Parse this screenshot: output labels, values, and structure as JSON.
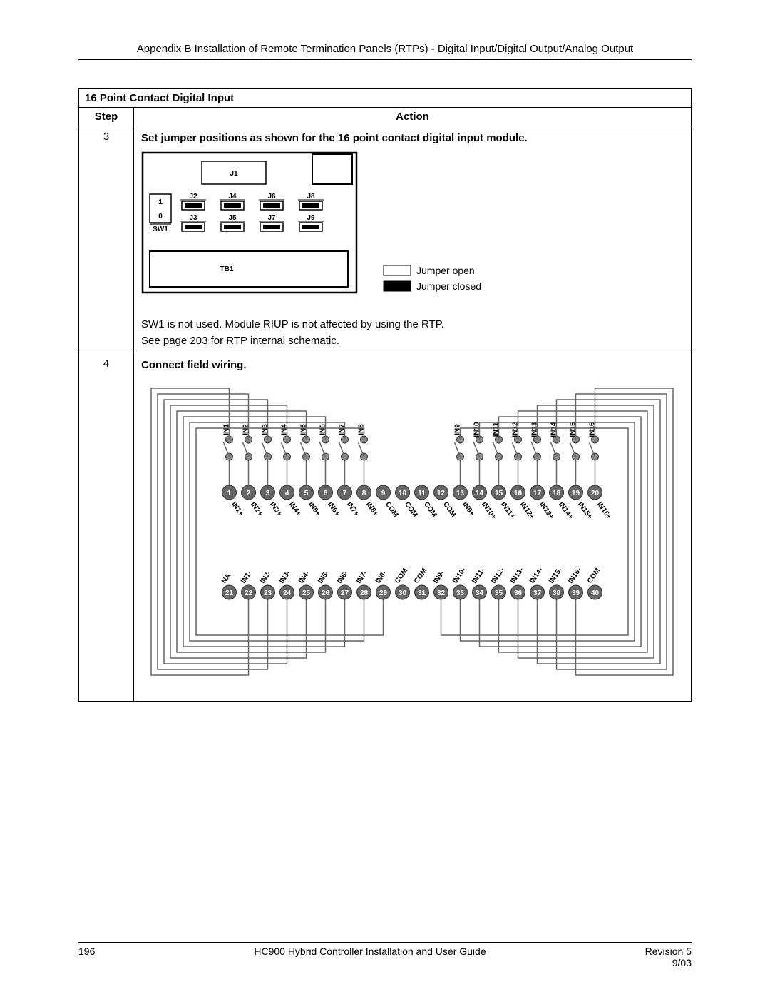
{
  "header": "Appendix B Installation of Remote Termination Panels (RTPs) - Digital Input/Digital Output/Analog Output",
  "table": {
    "title": "16 Point Contact Digital Input",
    "col1": "Step",
    "col2": "Action",
    "step3": {
      "num": "3",
      "instruction": "Set jumper positions as shown for the 16 point contact digital input module.",
      "legend_open": "Jumper open",
      "legend_closed": "Jumper closed",
      "note1": "SW1 is not used. Module RIUP is not affected by using the RTP.",
      "note2": "See page 203 for RTP internal schematic."
    },
    "step4": {
      "num": "4",
      "instruction": "Connect field wiring."
    }
  },
  "jumper_diagram": {
    "j1": "J1",
    "sw1": "SW1",
    "sw_top": "1",
    "sw_bot": "0",
    "tb1": "TB1",
    "jumpers": [
      {
        "label": "J2",
        "state": "closed"
      },
      {
        "label": "J4",
        "state": "closed"
      },
      {
        "label": "J6",
        "state": "closed"
      },
      {
        "label": "J8",
        "state": "closed"
      },
      {
        "label": "J3",
        "state": "closed"
      },
      {
        "label": "J5",
        "state": "closed"
      },
      {
        "label": "J7",
        "state": "closed"
      },
      {
        "label": "J9",
        "state": "closed"
      }
    ],
    "colors": {
      "outline": "#000",
      "fill_closed": "#000",
      "fill_open": "#fff",
      "bg": "#fff"
    }
  },
  "wiring_diagram": {
    "top_labels_left": [
      "IN1",
      "IN2",
      "IN3",
      "IN4",
      "IN5",
      "IN6",
      "IN7",
      "IN8"
    ],
    "top_labels_right": [
      "IN9",
      "IN10",
      "IN11",
      "IN12",
      "IN13",
      "IN14",
      "IN15",
      "IN16"
    ],
    "row1": {
      "numbers": [
        "1",
        "2",
        "3",
        "4",
        "5",
        "6",
        "7",
        "8",
        "9",
        "10",
        "11",
        "12",
        "13",
        "14",
        "15",
        "16",
        "17",
        "18",
        "19",
        "20"
      ],
      "labels": [
        "IN1+",
        "IN2+",
        "IN3+",
        "IN4+",
        "IN5+",
        "IN6+",
        "IN7+",
        "IN8+",
        "COM",
        "COM",
        "COM",
        "COM",
        "IN9+",
        "IN10+",
        "IN11+",
        "IN12+",
        "IN13+",
        "IN14+",
        "IN15+",
        "IN16+"
      ]
    },
    "row2": {
      "numbers": [
        "21",
        "22",
        "23",
        "24",
        "25",
        "26",
        "27",
        "28",
        "29",
        "30",
        "31",
        "32",
        "33",
        "34",
        "35",
        "36",
        "37",
        "38",
        "39",
        "40"
      ],
      "labels": [
        "NA",
        "IN1-",
        "IN2-",
        "IN3-",
        "IN4-",
        "IN5-",
        "IN6-",
        "IN7-",
        "IN8-",
        "COM",
        "COM",
        "IN9-",
        "IN10-",
        "IN11-",
        "IN12-",
        "IN13-",
        "IN14-",
        "IN15-",
        "IN16-",
        "COM"
      ]
    },
    "colors": {
      "wire": "#666",
      "terminal_fill": "#666",
      "terminal_text": "#fff",
      "outline": "#000",
      "pad": "#888"
    }
  },
  "footer": {
    "page": "196",
    "center": "HC900 Hybrid Controller Installation and User Guide",
    "rev": "Revision 5",
    "date": "9/03"
  }
}
